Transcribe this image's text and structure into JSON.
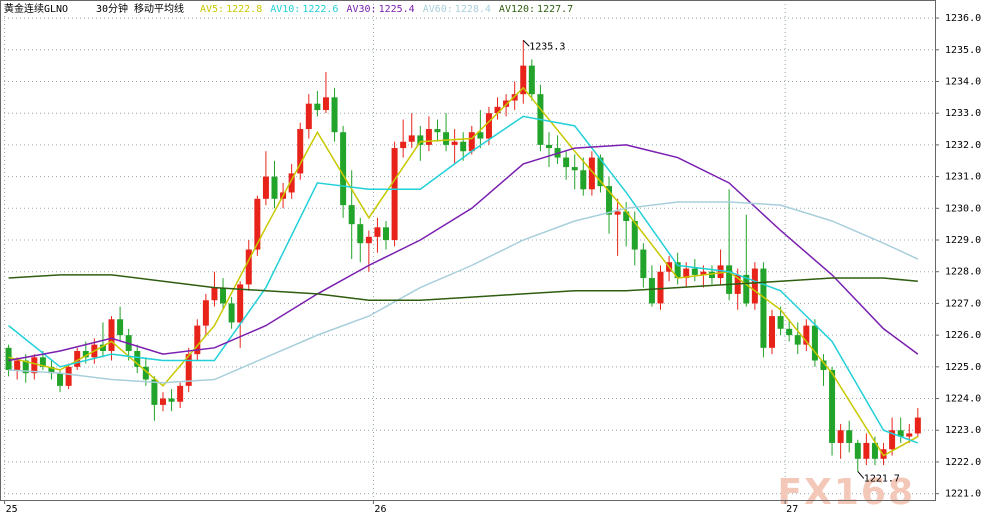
{
  "chart_data": {
    "type": "candlestick",
    "title": "黄金连续GLNO",
    "subtitle": "30分钟 移动平均线",
    "watermark": "FX168",
    "up_color": "#e8231a",
    "down_color": "#22a32a",
    "xlim": [
      -1,
      108
    ],
    "ylim": [
      1220.8,
      1236.57
    ],
    "xticks": [
      {
        "value": 0,
        "label": "25"
      },
      {
        "value": 43,
        "label": "26"
      },
      {
        "value": 91,
        "label": "27"
      }
    ],
    "yticks": [
      {
        "value": 1221,
        "label": "1221.0"
      },
      {
        "value": 1222,
        "label": "1222.0"
      },
      {
        "value": 1223,
        "label": "1223.0"
      },
      {
        "value": 1224,
        "label": "1224.0"
      },
      {
        "value": 1225,
        "label": "1225.0"
      },
      {
        "value": 1226,
        "label": "1226.0"
      },
      {
        "value": 1227,
        "label": "1227.0"
      },
      {
        "value": 1228,
        "label": "1228.0"
      },
      {
        "value": 1229,
        "label": "1229.0"
      },
      {
        "value": 1230,
        "label": "1230.0"
      },
      {
        "value": 1231,
        "label": "1231.0"
      },
      {
        "value": 1232,
        "label": "1232.0"
      },
      {
        "value": 1233,
        "label": "1233.0"
      },
      {
        "value": 1234,
        "label": "1234.0"
      },
      {
        "value": 1235,
        "label": "1235.0"
      },
      {
        "value": 1236,
        "label": "1236.0"
      }
    ],
    "grid": true,
    "open": [
      1225.6,
      1224.9,
      1225.2,
      1224.8,
      1225.3,
      1225.0,
      1224.8,
      1224.4,
      1225.0,
      1225.5,
      1225.3,
      1225.7,
      1225.5,
      1226.5,
      1226.0,
      1225.5,
      1225.0,
      1224.6,
      1223.8,
      1224.0,
      1223.9,
      1224.4,
      1225.4,
      1226.3,
      1227.1,
      1227.5,
      1227.0,
      1226.4,
      1227.6,
      1228.7,
      1230.3,
      1231.0,
      1230.3,
      1230.5,
      1231.1,
      1232.5,
      1233.3,
      1233.1,
      1233.5,
      1232.4,
      1230.1,
      1229.5,
      1228.9,
      1229.1,
      1229.4,
      1229.0,
      1231.9,
      1232.1,
      1232.3,
      1232.0,
      1232.5,
      1232.4,
      1232.0,
      1232.1,
      1231.8,
      1232.4,
      1232.2,
      1233.0,
      1233.2,
      1233.4,
      1233.6,
      1234.5,
      1233.6,
      1232.0,
      1231.9,
      1231.6,
      1231.3,
      1231.2,
      1230.6,
      1231.6,
      1230.7,
      1229.8,
      1229.9,
      1229.6,
      1228.7,
      1227.8,
      1227.0,
      1228.0,
      1228.3,
      1227.8,
      1228.1,
      1227.9,
      1228.0,
      1227.8,
      1228.2,
      1227.3,
      1227.9,
      1227.0,
      1228.1,
      1225.6,
      1226.6,
      1226.2,
      1226.0,
      1225.7,
      1226.3,
      1225.2,
      1224.9,
      1222.6,
      1223.0,
      1222.6,
      1222.1,
      1222.6,
      1222.1,
      1222.4,
      1223.0,
      1222.8,
      1222.9
    ],
    "high": [
      1225.7,
      1225.3,
      1225.4,
      1225.4,
      1225.5,
      1225.2,
      1224.9,
      1225.1,
      1225.6,
      1225.8,
      1225.9,
      1226.4,
      1226.6,
      1226.9,
      1226.2,
      1225.7,
      1225.3,
      1224.7,
      1224.2,
      1224.3,
      1224.5,
      1225.6,
      1226.5,
      1227.3,
      1228.0,
      1227.8,
      1227.2,
      1227.7,
      1229.0,
      1230.4,
      1231.8,
      1231.5,
      1230.8,
      1231.4,
      1232.7,
      1233.6,
      1233.7,
      1234.3,
      1233.8,
      1232.6,
      1231.2,
      1229.7,
      1229.3,
      1229.7,
      1229.6,
      1232.1,
      1232.8,
      1233.0,
      1232.6,
      1232.9,
      1232.8,
      1233.0,
      1232.5,
      1232.4,
      1232.6,
      1233.1,
      1233.2,
      1233.5,
      1233.6,
      1234.0,
      1235.3,
      1234.7,
      1233.9,
      1232.4,
      1232.3,
      1231.8,
      1231.7,
      1231.6,
      1231.8,
      1231.7,
      1231.0,
      1230.3,
      1230.2,
      1229.9,
      1228.9,
      1228.2,
      1228.2,
      1228.5,
      1228.6,
      1228.3,
      1228.4,
      1228.2,
      1228.2,
      1228.7,
      1230.6,
      1228.1,
      1229.8,
      1228.3,
      1228.3,
      1226.8,
      1226.9,
      1226.5,
      1226.4,
      1226.5,
      1226.5,
      1225.4,
      1225.0,
      1223.2,
      1223.3,
      1222.7,
      1222.9,
      1222.8,
      1222.6,
      1223.4,
      1223.4,
      1223.2,
      1223.7
    ],
    "low": [
      1224.7,
      1224.6,
      1224.5,
      1224.6,
      1224.9,
      1224.6,
      1224.2,
      1224.3,
      1224.9,
      1225.1,
      1225.1,
      1225.3,
      1225.2,
      1225.8,
      1225.2,
      1224.8,
      1224.4,
      1223.3,
      1223.6,
      1223.6,
      1223.7,
      1224.2,
      1225.2,
      1226.0,
      1226.9,
      1226.8,
      1226.2,
      1225.6,
      1227.4,
      1228.5,
      1230.1,
      1230.0,
      1230.0,
      1230.3,
      1230.9,
      1232.2,
      1232.9,
      1233.0,
      1232.1,
      1229.7,
      1228.4,
      1228.3,
      1228.0,
      1228.6,
      1228.7,
      1228.8,
      1231.6,
      1231.9,
      1231.5,
      1231.8,
      1232.1,
      1231.8,
      1231.4,
      1231.5,
      1231.7,
      1231.9,
      1232.0,
      1232.8,
      1232.9,
      1233.1,
      1233.3,
      1233.4,
      1231.8,
      1231.3,
      1231.4,
      1230.9,
      1230.6,
      1230.4,
      1230.4,
      1230.5,
      1229.2,
      1228.5,
      1228.8,
      1228.2,
      1227.5,
      1226.9,
      1226.8,
      1227.7,
      1227.6,
      1227.5,
      1227.7,
      1227.5,
      1227.6,
      1227.6,
      1227.1,
      1226.8,
      1226.9,
      1226.8,
      1225.3,
      1225.4,
      1226.0,
      1225.8,
      1225.4,
      1225.5,
      1225.0,
      1224.4,
      1222.2,
      1222.1,
      1222.3,
      1221.7,
      1221.9,
      1221.9,
      1221.9,
      1222.2,
      1222.6,
      1222.6,
      1222.8
    ],
    "close": [
      1224.9,
      1225.2,
      1224.8,
      1225.3,
      1225.0,
      1224.8,
      1224.4,
      1225.0,
      1225.5,
      1225.3,
      1225.7,
      1225.5,
      1226.5,
      1226.0,
      1225.5,
      1225.0,
      1224.6,
      1223.8,
      1224.0,
      1223.9,
      1224.4,
      1225.4,
      1226.3,
      1227.1,
      1227.5,
      1227.0,
      1226.4,
      1227.6,
      1228.7,
      1230.3,
      1231.0,
      1230.3,
      1230.5,
      1231.1,
      1232.5,
      1233.3,
      1233.1,
      1233.5,
      1232.4,
      1230.1,
      1229.5,
      1228.9,
      1229.1,
      1229.4,
      1229.0,
      1231.9,
      1232.1,
      1232.3,
      1232.0,
      1232.5,
      1232.4,
      1232.0,
      1232.1,
      1231.8,
      1232.4,
      1232.2,
      1233.0,
      1233.2,
      1233.4,
      1233.6,
      1234.5,
      1233.6,
      1232.0,
      1231.9,
      1231.6,
      1231.3,
      1231.2,
      1230.6,
      1231.6,
      1230.7,
      1229.8,
      1229.9,
      1229.6,
      1228.7,
      1227.8,
      1227.0,
      1228.0,
      1228.3,
      1227.8,
      1228.1,
      1227.9,
      1228.0,
      1227.8,
      1228.2,
      1227.3,
      1227.9,
      1227.0,
      1228.1,
      1225.6,
      1226.6,
      1226.2,
      1226.0,
      1225.7,
      1226.3,
      1225.2,
      1224.9,
      1222.6,
      1223.0,
      1222.6,
      1222.1,
      1222.6,
      1222.1,
      1222.4,
      1223.0,
      1222.8,
      1222.9,
      1223.4
    ],
    "series": [
      {
        "name": "AV5:",
        "last": 1222.8,
        "color": "#c8c800",
        "x": [
          0,
          6,
          12,
          18,
          24,
          30,
          36,
          42,
          48,
          54,
          60,
          66,
          72,
          78,
          84,
          90,
          96,
          102,
          106
        ],
        "values": [
          1225.3,
          1224.9,
          1225.8,
          1224.4,
          1226.3,
          1229.4,
          1232.4,
          1229.7,
          1232.1,
          1232.2,
          1233.8,
          1231.8,
          1229.9,
          1227.8,
          1228.0,
          1226.8,
          1224.8,
          1222.2,
          1222.8
        ]
      },
      {
        "name": "AV10:",
        "last": 1222.6,
        "color": "#22d0d8",
        "x": [
          0,
          6,
          12,
          18,
          24,
          30,
          36,
          42,
          48,
          54,
          60,
          66,
          72,
          78,
          84,
          90,
          96,
          102,
          106
        ],
        "values": [
          1226.3,
          1225.0,
          1225.4,
          1225.2,
          1225.2,
          1227.5,
          1230.8,
          1230.6,
          1230.6,
          1231.8,
          1232.9,
          1232.6,
          1230.5,
          1228.2,
          1228.0,
          1227.4,
          1225.8,
          1223.0,
          1222.6
        ]
      },
      {
        "name": "AV30:",
        "last": 1225.4,
        "color": "#7a1fb0",
        "x": [
          0,
          6,
          12,
          18,
          24,
          30,
          36,
          42,
          48,
          54,
          60,
          66,
          72,
          78,
          84,
          90,
          96,
          102,
          106
        ],
        "values": [
          1225.2,
          1225.5,
          1225.9,
          1225.4,
          1225.6,
          1226.3,
          1227.3,
          1228.2,
          1229.0,
          1230.0,
          1231.4,
          1231.9,
          1232.0,
          1231.6,
          1230.8,
          1229.3,
          1227.9,
          1226.2,
          1225.4
        ]
      },
      {
        "name": "AV60:",
        "last": 1228.4,
        "color": "#a8cfdc",
        "x": [
          0,
          6,
          12,
          18,
          24,
          30,
          36,
          42,
          48,
          54,
          60,
          66,
          72,
          78,
          84,
          90,
          96,
          102,
          106
        ],
        "values": [
          1224.9,
          1224.8,
          1224.6,
          1224.5,
          1224.6,
          1225.3,
          1226.0,
          1226.6,
          1227.5,
          1228.2,
          1229.0,
          1229.6,
          1230.0,
          1230.2,
          1230.2,
          1230.1,
          1229.6,
          1228.9,
          1228.4
        ]
      },
      {
        "name": "AV120:",
        "last": 1227.7,
        "color": "#2f5e10",
        "x": [
          0,
          6,
          12,
          18,
          24,
          30,
          36,
          42,
          48,
          54,
          60,
          66,
          72,
          78,
          84,
          90,
          96,
          102,
          106
        ],
        "values": [
          1227.8,
          1227.9,
          1227.9,
          1227.7,
          1227.5,
          1227.4,
          1227.3,
          1227.1,
          1227.1,
          1227.2,
          1227.3,
          1227.4,
          1227.4,
          1227.5,
          1227.6,
          1227.7,
          1227.8,
          1227.8,
          1227.7
        ]
      }
    ],
    "annotations": [
      {
        "x": 60,
        "value": 1235.3
      },
      {
        "x": 99,
        "value": 1221.7
      }
    ]
  }
}
